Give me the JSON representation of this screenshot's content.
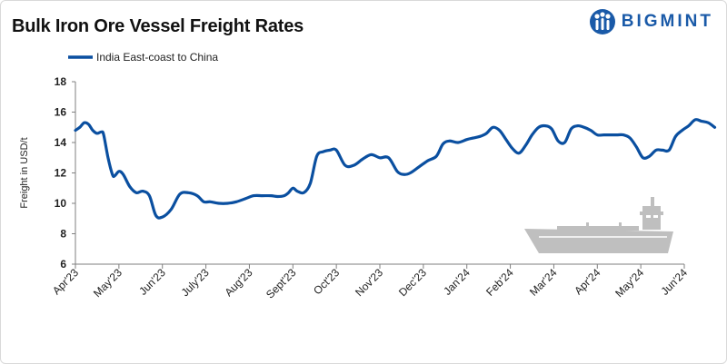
{
  "header": {
    "title": "Bulk Iron Ore Vessel Freight Rates",
    "brand": "BIGMINT"
  },
  "colors": {
    "series": "#0a4fa0",
    "brand": "#1a5aa8",
    "ship": "#bfbfbf",
    "axis": "#7f7f7f"
  },
  "chart_data": {
    "type": "line",
    "title": "Bulk Iron Ore Vessel Freight Rates",
    "xlabel": "",
    "ylabel": "Freight  in USD/t",
    "ylim": [
      6,
      18
    ],
    "yticks": [
      6,
      8,
      10,
      12,
      14,
      16,
      18
    ],
    "legend_position": "top-left",
    "month_labels": [
      "Apr'23",
      "May'23",
      "Jun'23",
      "July'23",
      "Aug'23",
      "Sept'23",
      "Oct'23",
      "Nov'23",
      "Dec'23",
      "Jan'24",
      "Feb'24",
      "Mar'24",
      "Apr'24",
      "May'24",
      "Jun'24"
    ],
    "series": [
      {
        "name": "India East-coast to China",
        "x": [
          0.0,
          0.1,
          0.2,
          0.3,
          0.4,
          0.5,
          0.6,
          0.65,
          0.75,
          0.85,
          0.9,
          1.0,
          1.1,
          1.25,
          1.4,
          1.55,
          1.7,
          1.85,
          2.0,
          2.2,
          2.4,
          2.6,
          2.8,
          2.95,
          3.1,
          3.3,
          3.5,
          3.7,
          3.9,
          4.1,
          4.3,
          4.5,
          4.65,
          4.8,
          4.9,
          5.0,
          5.1,
          5.25,
          5.4,
          5.55,
          5.7,
          5.85,
          6.0,
          6.2,
          6.4,
          6.6,
          6.8,
          7.0,
          7.2,
          7.4,
          7.55,
          7.7,
          7.9,
          8.1,
          8.3,
          8.45,
          8.6,
          8.8,
          9.0,
          9.15,
          9.3,
          9.45,
          9.6,
          9.75,
          9.9,
          10.05,
          10.2,
          10.35,
          10.5,
          10.65,
          10.8,
          10.95,
          11.1,
          11.25,
          11.4,
          11.55,
          11.7,
          11.85,
          12.0,
          12.15,
          12.3,
          12.45,
          12.6,
          12.75,
          12.9,
          13.05,
          13.2,
          13.35,
          13.5,
          13.65,
          13.8,
          13.95,
          14.1,
          14.25,
          14.4,
          14.55,
          14.7
        ],
        "values": [
          14.8,
          15.0,
          15.3,
          15.2,
          14.8,
          14.6,
          14.7,
          14.5,
          13.0,
          11.9,
          11.8,
          12.1,
          11.9,
          11.1,
          10.7,
          10.8,
          10.5,
          9.2,
          9.1,
          9.6,
          10.6,
          10.7,
          10.5,
          10.1,
          10.1,
          10.0,
          10.0,
          10.1,
          10.3,
          10.5,
          10.5,
          10.5,
          10.45,
          10.5,
          10.7,
          11.0,
          10.8,
          10.7,
          11.3,
          13.1,
          13.4,
          13.5,
          13.5,
          12.5,
          12.5,
          12.9,
          13.2,
          13.0,
          13.0,
          12.1,
          11.9,
          12.0,
          12.4,
          12.8,
          13.1,
          13.9,
          14.1,
          14.0,
          14.2,
          14.3,
          14.4,
          14.6,
          15.0,
          14.8,
          14.2,
          13.6,
          13.3,
          13.8,
          14.5,
          15.0,
          15.1,
          14.9,
          14.1,
          14.0,
          14.9,
          15.1,
          15.0,
          14.8,
          14.5,
          14.5,
          14.5,
          14.5,
          14.5,
          14.3,
          13.7,
          13.0,
          13.1,
          13.5,
          13.5,
          13.5,
          14.4,
          14.8,
          15.1,
          15.5,
          15.4,
          15.3,
          15.0
        ]
      }
    ]
  }
}
